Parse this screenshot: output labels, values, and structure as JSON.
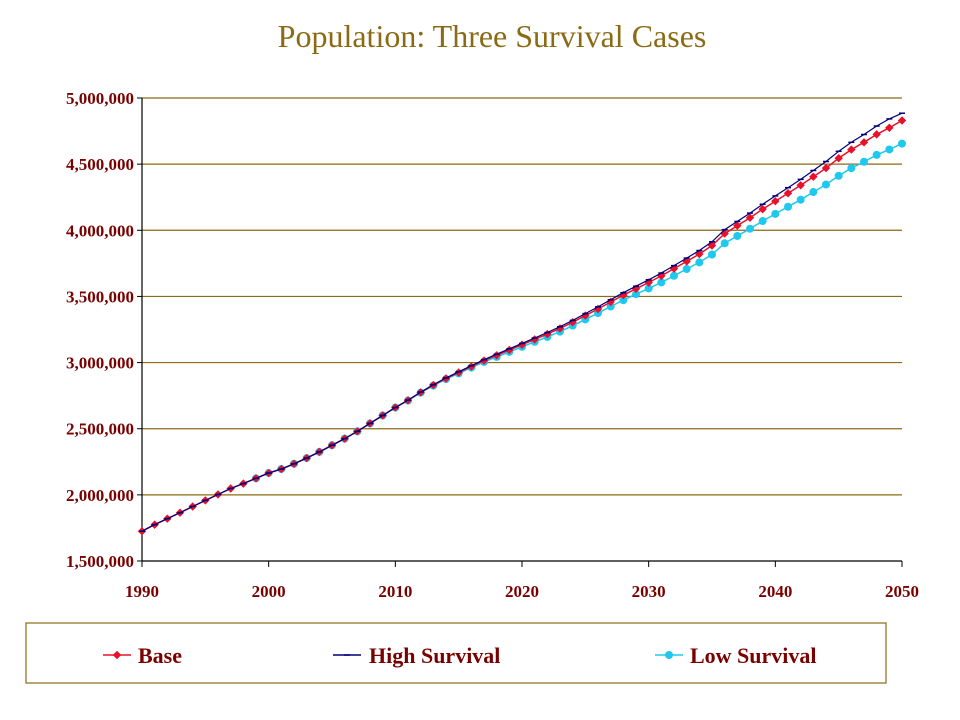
{
  "chart_data": {
    "type": "line",
    "title": "Population: Three Survival Cases",
    "xlabel": "",
    "ylabel": "",
    "xlim": [
      1990,
      2050
    ],
    "ylim": [
      1500000,
      5000000
    ],
    "x_ticks": [
      "1990",
      "2000",
      "2010",
      "2020",
      "2030",
      "2040",
      "2050"
    ],
    "y_ticks": [
      "1,500,000",
      "2,000,000",
      "2,500,000",
      "3,000,000",
      "3,500,000",
      "4,000,000",
      "4,500,000",
      "5,000,000"
    ],
    "grid": "horizontal",
    "legend_position": "bottom",
    "colors": {
      "base": "#e8102a",
      "high": "#00007a",
      "low": "#1ec8ee",
      "text": "#7a0000",
      "title": "#8B6A14",
      "grid": "#8B6A14"
    },
    "series": [
      {
        "name": "Base",
        "color": "#e8102a",
        "marker": "diamond",
        "x": [
          1990,
          1991,
          1992,
          1993,
          1994,
          1995,
          1996,
          1997,
          1998,
          1999,
          2000,
          2001,
          2002,
          2003,
          2004,
          2005,
          2006,
          2007,
          2008,
          2009,
          2010,
          2011,
          2012,
          2013,
          2014,
          2015,
          2016,
          2017,
          2018,
          2019,
          2020,
          2021,
          2022,
          2023,
          2024,
          2025,
          2026,
          2027,
          2028,
          2029,
          2030,
          2031,
          2032,
          2033,
          2034,
          2035,
          2036,
          2037,
          2038,
          2039,
          2040,
          2041,
          2042,
          2043,
          2044,
          2045,
          2046,
          2047,
          2048,
          2049,
          2050
        ],
        "values": [
          1725000,
          1775000,
          1820000,
          1865000,
          1912000,
          1958000,
          2003000,
          2048000,
          2085000,
          2125000,
          2165000,
          2195000,
          2235000,
          2278000,
          2325000,
          2375000,
          2425000,
          2480000,
          2540000,
          2600000,
          2660000,
          2715000,
          2775000,
          2830000,
          2880000,
          2925000,
          2970000,
          3015000,
          3055000,
          3095000,
          3135000,
          3175000,
          3215000,
          3258000,
          3305000,
          3355000,
          3405000,
          3458000,
          3510000,
          3558000,
          3605000,
          3655000,
          3710000,
          3765000,
          3820000,
          3885000,
          3975000,
          4035000,
          4095000,
          4160000,
          4220000,
          4280000,
          4340000,
          4405000,
          4470000,
          4545000,
          4610000,
          4665000,
          4725000,
          4775000,
          4830000
        ]
      },
      {
        "name": "High Survival",
        "color": "#00007a",
        "marker": "dash",
        "x": [
          1990,
          1991,
          1992,
          1993,
          1994,
          1995,
          1996,
          1997,
          1998,
          1999,
          2000,
          2001,
          2002,
          2003,
          2004,
          2005,
          2006,
          2007,
          2008,
          2009,
          2010,
          2011,
          2012,
          2013,
          2014,
          2015,
          2016,
          2017,
          2018,
          2019,
          2020,
          2021,
          2022,
          2023,
          2024,
          2025,
          2026,
          2027,
          2028,
          2029,
          2030,
          2031,
          2032,
          2033,
          2034,
          2035,
          2036,
          2037,
          2038,
          2039,
          2040,
          2041,
          2042,
          2043,
          2044,
          2045,
          2046,
          2047,
          2048,
          2049,
          2050
        ],
        "values": [
          1725000,
          1775000,
          1820000,
          1865000,
          1912000,
          1958000,
          2003000,
          2048000,
          2085000,
          2125000,
          2165000,
          2195000,
          2235000,
          2278000,
          2325000,
          2375000,
          2425000,
          2480000,
          2540000,
          2600000,
          2660000,
          2716000,
          2777000,
          2833000,
          2884000,
          2930000,
          2976000,
          3022000,
          3063000,
          3104000,
          3145000,
          3186000,
          3227000,
          3271000,
          3319000,
          3370000,
          3421000,
          3475000,
          3528000,
          3577000,
          3626000,
          3677000,
          3733000,
          3790000,
          3847000,
          3913000,
          4005000,
          4067000,
          4130000,
          4197000,
          4260000,
          4322000,
          4385000,
          4452000,
          4520000,
          4597000,
          4665000,
          4724000,
          4788000,
          4842000,
          4885000
        ]
      },
      {
        "name": "Low Survival",
        "color": "#1ec8ee",
        "marker": "circle",
        "x": [
          1999,
          2000,
          2001,
          2002,
          2003,
          2004,
          2005,
          2006,
          2007,
          2008,
          2009,
          2010,
          2011,
          2012,
          2013,
          2014,
          2015,
          2016,
          2017,
          2018,
          2019,
          2020,
          2021,
          2022,
          2023,
          2024,
          2025,
          2026,
          2027,
          2028,
          2029,
          2030,
          2031,
          2032,
          2033,
          2034,
          2035,
          2036,
          2037,
          2038,
          2039,
          2040,
          2041,
          2042,
          2043,
          2044,
          2045,
          2046,
          2047,
          2048,
          2049,
          2050
        ],
        "values": [
          2125000,
          2165000,
          2195000,
          2235000,
          2278000,
          2325000,
          2375000,
          2425000,
          2480000,
          2540000,
          2600000,
          2660000,
          2713000,
          2772000,
          2826000,
          2875000,
          2918000,
          2962000,
          3005000,
          3043000,
          3081000,
          3119000,
          3157000,
          3194000,
          3234000,
          3279000,
          3326000,
          3374000,
          3424000,
          3472000,
          3517000,
          3561000,
          3606000,
          3656000,
          3707000,
          3757000,
          3817000,
          3902000,
          3957000,
          4012000,
          4070000,
          4124000,
          4178000,
          4231000,
          4289000,
          4346000,
          4412000,
          4470000,
          4518000,
          4570000,
          4611000,
          4655000
        ]
      }
    ]
  }
}
